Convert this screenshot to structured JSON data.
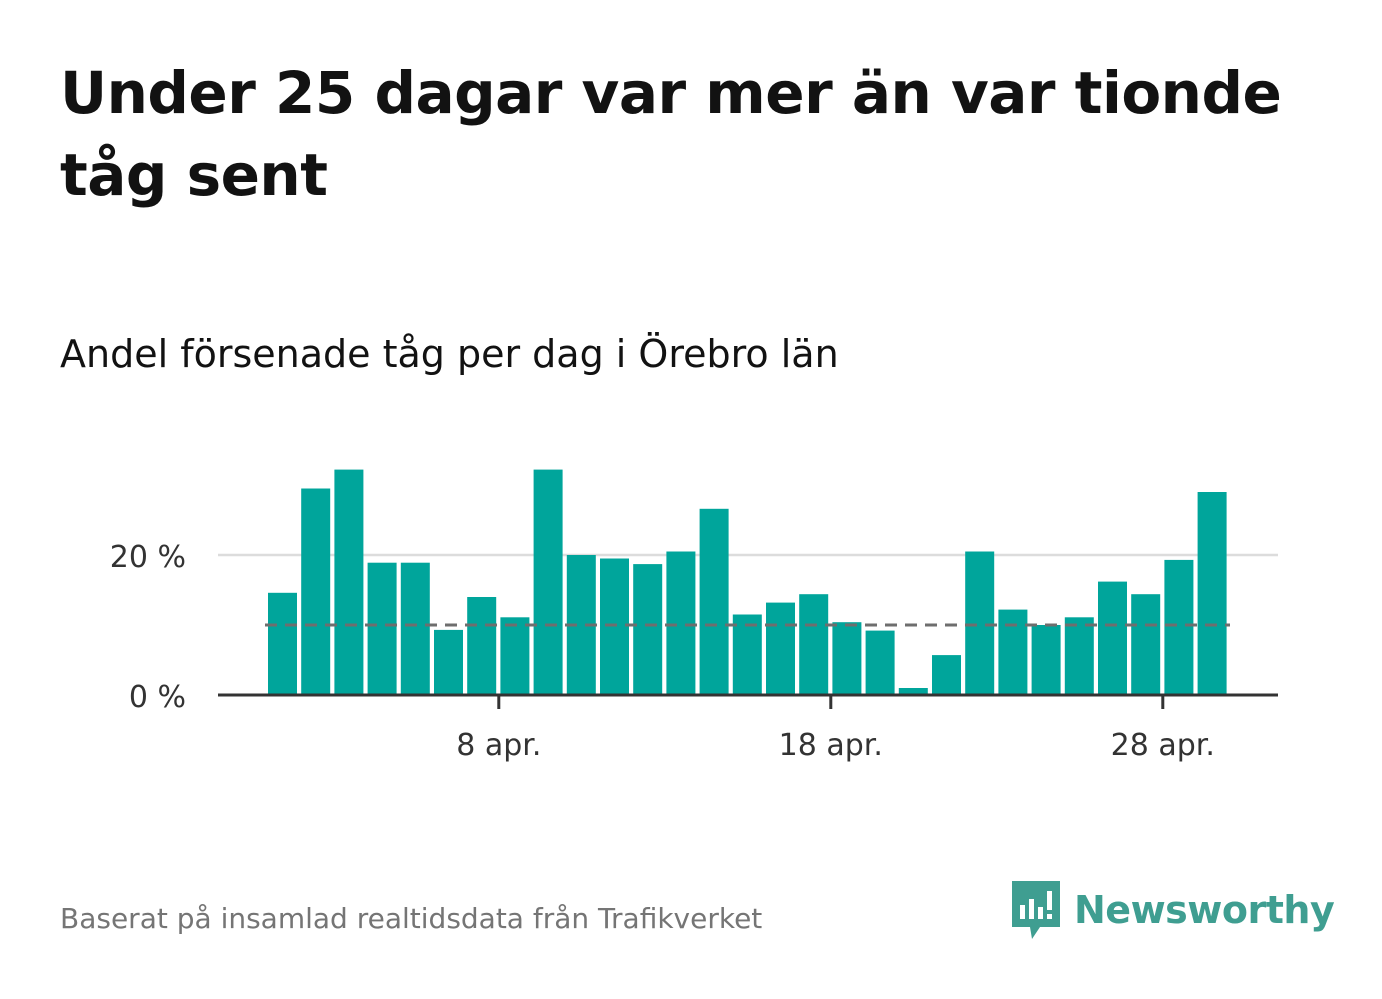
{
  "title": "Under 25 dagar var mer än var tionde tåg sent",
  "subtitle": "Andel försenade tåg per dag i Örebro län",
  "source": "Baserat på insamlad realtidsdata från Trafikverket",
  "brand": {
    "name": "Newsworthy",
    "color": "#3f9e91"
  },
  "colors": {
    "bar": "#00a59b",
    "threshold_line": "#6e6e6e",
    "grid": "#dcdcdc",
    "axis": "#333333"
  },
  "chart_data": {
    "type": "bar",
    "x_unit": "day of April",
    "x": [
      1,
      2,
      3,
      4,
      5,
      6,
      7,
      8,
      9,
      10,
      11,
      12,
      13,
      14,
      15,
      16,
      17,
      18,
      19,
      20,
      21,
      22,
      23,
      24,
      25,
      26,
      27,
      28,
      29
    ],
    "values": [
      14.6,
      29.5,
      32.2,
      18.9,
      18.9,
      9.3,
      14.0,
      11.1,
      32.2,
      20.0,
      19.5,
      18.7,
      20.5,
      26.6,
      11.5,
      13.2,
      14.4,
      10.4,
      9.2,
      1.0,
      5.7,
      20.5,
      12.2,
      10.0,
      11.1,
      16.2,
      14.4,
      19.3,
      29.0
    ],
    "threshold": 10,
    "ylim": [
      0,
      35
    ],
    "y_ticks": [
      0,
      20
    ],
    "y_tick_labels": [
      "0 %",
      "20 %"
    ],
    "x_ticks": [
      8,
      18,
      28
    ],
    "x_tick_labels": [
      "8 apr.",
      "18 apr.",
      "28 apr."
    ],
    "grid": true,
    "legend": "none"
  }
}
